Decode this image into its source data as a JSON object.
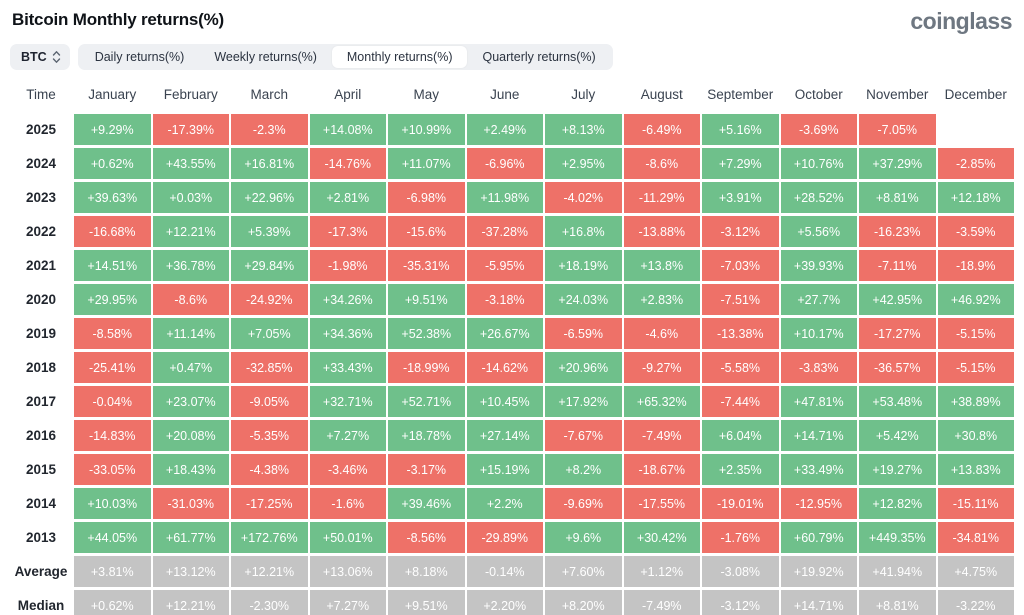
{
  "page": {
    "title": "Bitcoin Monthly returns(%)",
    "logo": "coinglass"
  },
  "controls": {
    "symbol_select": {
      "value": "BTC",
      "icon": "sort-arrows-icon"
    },
    "tabs": [
      {
        "label": "Daily returns(%)",
        "active": false
      },
      {
        "label": "Weekly returns(%)",
        "active": false
      },
      {
        "label": "Monthly returns(%)",
        "active": true
      },
      {
        "label": "Quarterly returns(%)",
        "active": false
      }
    ]
  },
  "colors": {
    "positive": "#6fc08b",
    "negative": "#ee7168",
    "summary": "#c4c4c4"
  },
  "table": {
    "time_header": "Time",
    "columns": [
      "January",
      "February",
      "March",
      "April",
      "May",
      "June",
      "July",
      "August",
      "September",
      "October",
      "November",
      "December"
    ],
    "rows": [
      {
        "label": "2025",
        "type": "year",
        "values": [
          "+9.29%",
          "-17.39%",
          "-2.3%",
          "+14.08%",
          "+10.99%",
          "+2.49%",
          "+8.13%",
          "-6.49%",
          "+5.16%",
          "-3.69%",
          "-7.05%",
          ""
        ]
      },
      {
        "label": "2024",
        "type": "year",
        "values": [
          "+0.62%",
          "+43.55%",
          "+16.81%",
          "-14.76%",
          "+11.07%",
          "-6.96%",
          "+2.95%",
          "-8.6%",
          "+7.29%",
          "+10.76%",
          "+37.29%",
          "-2.85%"
        ]
      },
      {
        "label": "2023",
        "type": "year",
        "values": [
          "+39.63%",
          "+0.03%",
          "+22.96%",
          "+2.81%",
          "-6.98%",
          "+11.98%",
          "-4.02%",
          "-11.29%",
          "+3.91%",
          "+28.52%",
          "+8.81%",
          "+12.18%"
        ]
      },
      {
        "label": "2022",
        "type": "year",
        "values": [
          "-16.68%",
          "+12.21%",
          "+5.39%",
          "-17.3%",
          "-15.6%",
          "-37.28%",
          "+16.8%",
          "-13.88%",
          "-3.12%",
          "+5.56%",
          "-16.23%",
          "-3.59%"
        ]
      },
      {
        "label": "2021",
        "type": "year",
        "values": [
          "+14.51%",
          "+36.78%",
          "+29.84%",
          "-1.98%",
          "-35.31%",
          "-5.95%",
          "+18.19%",
          "+13.8%",
          "-7.03%",
          "+39.93%",
          "-7.11%",
          "-18.9%"
        ]
      },
      {
        "label": "2020",
        "type": "year",
        "values": [
          "+29.95%",
          "-8.6%",
          "-24.92%",
          "+34.26%",
          "+9.51%",
          "-3.18%",
          "+24.03%",
          "+2.83%",
          "-7.51%",
          "+27.7%",
          "+42.95%",
          "+46.92%"
        ]
      },
      {
        "label": "2019",
        "type": "year",
        "values": [
          "-8.58%",
          "+11.14%",
          "+7.05%",
          "+34.36%",
          "+52.38%",
          "+26.67%",
          "-6.59%",
          "-4.6%",
          "-13.38%",
          "+10.17%",
          "-17.27%",
          "-5.15%"
        ]
      },
      {
        "label": "2018",
        "type": "year",
        "values": [
          "-25.41%",
          "+0.47%",
          "-32.85%",
          "+33.43%",
          "-18.99%",
          "-14.62%",
          "+20.96%",
          "-9.27%",
          "-5.58%",
          "-3.83%",
          "-36.57%",
          "-5.15%"
        ]
      },
      {
        "label": "2017",
        "type": "year",
        "values": [
          "-0.04%",
          "+23.07%",
          "-9.05%",
          "+32.71%",
          "+52.71%",
          "+10.45%",
          "+17.92%",
          "+65.32%",
          "-7.44%",
          "+47.81%",
          "+53.48%",
          "+38.89%"
        ]
      },
      {
        "label": "2016",
        "type": "year",
        "values": [
          "-14.83%",
          "+20.08%",
          "-5.35%",
          "+7.27%",
          "+18.78%",
          "+27.14%",
          "-7.67%",
          "-7.49%",
          "+6.04%",
          "+14.71%",
          "+5.42%",
          "+30.8%"
        ]
      },
      {
        "label": "2015",
        "type": "year",
        "values": [
          "-33.05%",
          "+18.43%",
          "-4.38%",
          "-3.46%",
          "-3.17%",
          "+15.19%",
          "+8.2%",
          "-18.67%",
          "+2.35%",
          "+33.49%",
          "+19.27%",
          "+13.83%"
        ]
      },
      {
        "label": "2014",
        "type": "year",
        "values": [
          "+10.03%",
          "-31.03%",
          "-17.25%",
          "-1.6%",
          "+39.46%",
          "+2.2%",
          "-9.69%",
          "-17.55%",
          "-19.01%",
          "-12.95%",
          "+12.82%",
          "-15.11%"
        ]
      },
      {
        "label": "2013",
        "type": "year",
        "values": [
          "+44.05%",
          "+61.77%",
          "+172.76%",
          "+50.01%",
          "-8.56%",
          "-29.89%",
          "+9.6%",
          "+30.42%",
          "-1.76%",
          "+60.79%",
          "+449.35%",
          "-34.81%"
        ]
      },
      {
        "label": "Average",
        "type": "summary",
        "values": [
          "+3.81%",
          "+13.12%",
          "+12.21%",
          "+13.06%",
          "+8.18%",
          "-0.14%",
          "+7.60%",
          "+1.12%",
          "-3.08%",
          "+19.92%",
          "+41.94%",
          "+4.75%"
        ]
      },
      {
        "label": "Median",
        "type": "summary",
        "values": [
          "+0.62%",
          "+12.21%",
          "-2.30%",
          "+7.27%",
          "+9.51%",
          "+2.20%",
          "+8.20%",
          "-7.49%",
          "-3.12%",
          "+14.71%",
          "+8.81%",
          "-3.22%"
        ]
      }
    ]
  }
}
